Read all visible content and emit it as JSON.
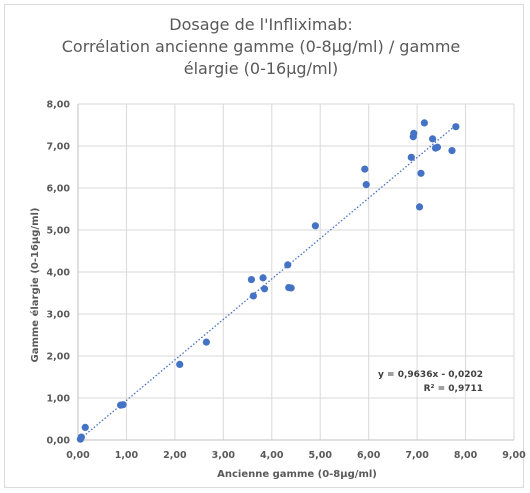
{
  "chart_data": {
    "type": "scatter",
    "title_lines": [
      "Dosage de l'Infliximab:",
      "Corrélation ancienne gamme (0-8µg/ml) / gamme",
      "élargie (0-16µg/ml)"
    ],
    "xlabel": "Ancienne gamme (0-8µg/ml)",
    "ylabel": "Gamme élargie (0-16µg/ml)",
    "xlim": [
      0,
      9
    ],
    "ylim": [
      0,
      8
    ],
    "x_ticks": [
      "0,00",
      "1,00",
      "2,00",
      "3,00",
      "4,00",
      "5,00",
      "6,00",
      "7,00",
      "8,00",
      "9,00"
    ],
    "y_ticks": [
      "0,00",
      "1,00",
      "2,00",
      "3,00",
      "4,00",
      "5,00",
      "6,00",
      "7,00",
      "8,00"
    ],
    "grid": true,
    "marker_color": "#4472c4",
    "trendline": {
      "slope": 0.9636,
      "intercept": -0.0202,
      "color": "#4472c4"
    },
    "annotation": [
      "y = 0,9636x - 0,0202",
      "R² = 0,9711"
    ],
    "points": [
      {
        "x": 0.05,
        "y": 0.02
      },
      {
        "x": 0.07,
        "y": 0.07
      },
      {
        "x": 0.15,
        "y": 0.3
      },
      {
        "x": 0.88,
        "y": 0.83
      },
      {
        "x": 0.93,
        "y": 0.84
      },
      {
        "x": 2.1,
        "y": 1.8
      },
      {
        "x": 2.65,
        "y": 2.33
      },
      {
        "x": 3.58,
        "y": 3.82
      },
      {
        "x": 3.62,
        "y": 3.43
      },
      {
        "x": 3.82,
        "y": 3.86
      },
      {
        "x": 3.85,
        "y": 3.6
      },
      {
        "x": 4.33,
        "y": 4.17
      },
      {
        "x": 4.35,
        "y": 3.63
      },
      {
        "x": 4.4,
        "y": 3.62
      },
      {
        "x": 4.9,
        "y": 5.1
      },
      {
        "x": 5.92,
        "y": 6.45
      },
      {
        "x": 5.95,
        "y": 6.08
      },
      {
        "x": 6.88,
        "y": 6.73
      },
      {
        "x": 6.92,
        "y": 7.22
      },
      {
        "x": 6.93,
        "y": 7.3
      },
      {
        "x": 7.05,
        "y": 5.55
      },
      {
        "x": 7.08,
        "y": 6.35
      },
      {
        "x": 7.15,
        "y": 7.55
      },
      {
        "x": 7.32,
        "y": 7.17
      },
      {
        "x": 7.38,
        "y": 6.95
      },
      {
        "x": 7.42,
        "y": 6.97
      },
      {
        "x": 7.72,
        "y": 6.89
      },
      {
        "x": 7.8,
        "y": 7.46
      }
    ]
  }
}
